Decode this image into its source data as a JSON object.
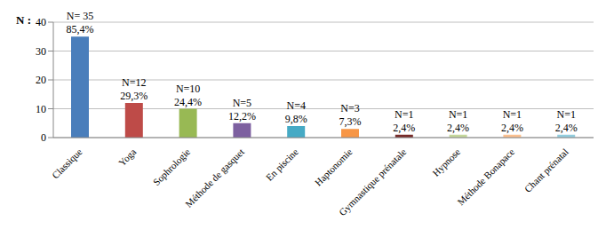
{
  "chart_data": {
    "type": "bar",
    "y_label": "N :",
    "categories": [
      "Classique",
      "Yoga",
      "Sophrologie",
      "Méthode de gasquet",
      "En piscine",
      "Haptonomie",
      "Gymnastique prénatale",
      "Hypnose",
      "Méthode Bonapace",
      "Chant prénatal"
    ],
    "values": [
      35,
      12,
      10,
      5,
      4,
      3,
      1,
      1,
      1,
      1
    ],
    "value_labels": [
      "N= 35",
      "N=12",
      "N=10",
      "N=5",
      "N=4",
      "N=3",
      "N=1",
      "N=1",
      "N=1",
      "N=1"
    ],
    "percentages": [
      85.4,
      29.3,
      24.4,
      12.2,
      9.8,
      7.3,
      2.4,
      2.4,
      2.4,
      2.4
    ],
    "percentage_labels": [
      "85,4%",
      "29,3%",
      "24,4%",
      "12,2%",
      "9,8%",
      "7,3%",
      "2,4%",
      "2,4%",
      "2,4%",
      "2,4%"
    ],
    "colors": [
      "#4a7ebb",
      "#be4b48",
      "#98b954",
      "#7d60a0",
      "#46aac5",
      "#f79646",
      "#772c2a",
      "#c4d79b",
      "#fac090",
      "#93cddd"
    ],
    "ylim": [
      0,
      40
    ],
    "yticks": [
      0,
      10,
      20,
      30,
      40
    ],
    "grid": true,
    "data_labels": true
  }
}
